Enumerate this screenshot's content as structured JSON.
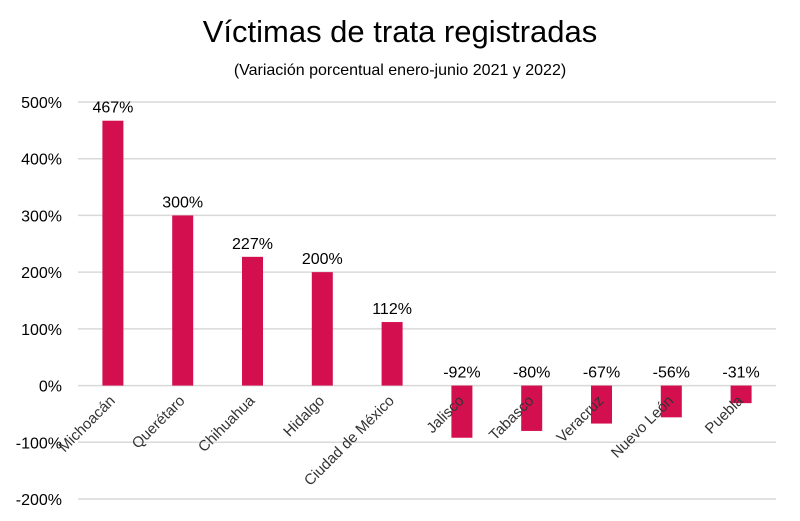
{
  "chart_data": {
    "type": "bar",
    "title": "Víctimas de trata registradas",
    "subtitle": "(Variación porcentual enero-junio 2021 y 2022)",
    "categories": [
      "Michoacán",
      "Querétaro",
      "Chihuahua",
      "Hidalgo",
      "Ciudad de México",
      "Jalisco",
      "Tabasco",
      "Veracruz",
      "Nuevo León",
      "Puebla"
    ],
    "values": [
      467,
      300,
      227,
      200,
      112,
      -92,
      -80,
      -67,
      -56,
      -31
    ],
    "data_labels": [
      "467%",
      "300%",
      "227%",
      "200%",
      "112%",
      "-92%",
      "-80%",
      "-67%",
      "-56%",
      "-31%"
    ],
    "xlabel": "",
    "ylabel": "",
    "ylim": [
      -200,
      500
    ],
    "yticks": [
      500,
      400,
      300,
      200,
      100,
      0,
      -100,
      -200
    ],
    "ytick_labels": [
      "500%",
      "400%",
      "300%",
      "200%",
      "100%",
      "0%",
      "-100%",
      "-200%"
    ],
    "grid": true,
    "legend": "none",
    "bar_color": "#d40f4f",
    "grid_color": "#d9d9d9"
  }
}
